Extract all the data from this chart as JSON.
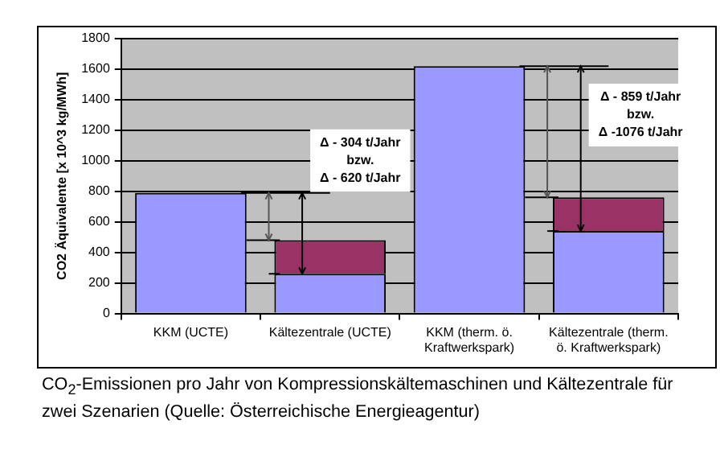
{
  "chart_data": {
    "type": "bar",
    "stacked": true,
    "categories": [
      "KKM (UCTE)",
      "Kältezentrale (UCTE)",
      "KKM (therm. ö. Kraftwerkspark)",
      "Kältezentrale (therm. ö. Kraftwerkspark)"
    ],
    "series": [
      {
        "color": "#9999ff",
        "values": [
          790,
          260,
          1620,
          540
        ]
      },
      {
        "color": "#993366",
        "values": [
          null,
          220,
          null,
          220
        ]
      }
    ],
    "ylabel": "CO2 Äquivalente [x 10^3 kg/MWh]",
    "ylim": [
      0,
      1800
    ],
    "yticks": [
      0,
      200,
      400,
      600,
      800,
      1000,
      1200,
      1400,
      1600,
      1800
    ],
    "grid": "y",
    "legend": false,
    "annotations": [
      "Δ - 304 t/Jahr\nbzw.\nΔ - 620 t/Jahr",
      "Δ - 859 t/Jahr\nbzw.\nΔ -1076 t/Jahr",
      "CO$_{2}$-Emissionen pro Jahr von Kompressionskältemaschinen und Kältezentrale für zwei Szenarien (Quelle: Österreichische Energieagentur)"
    ]
  }
}
